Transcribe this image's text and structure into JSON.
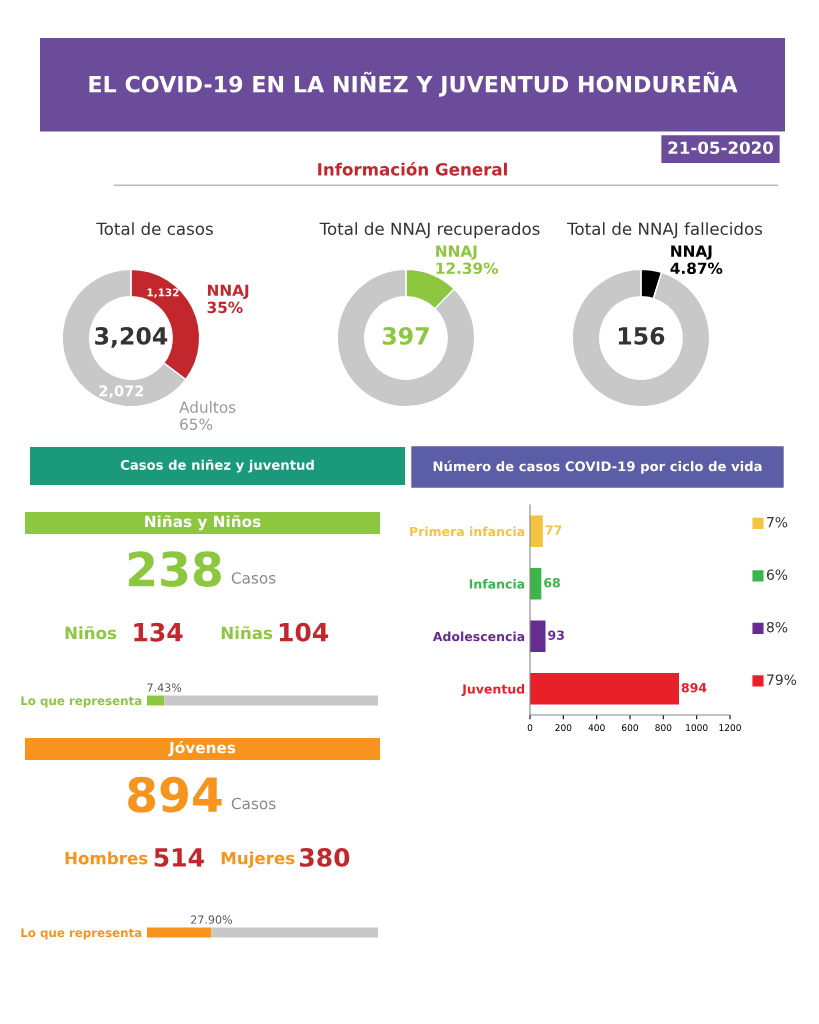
{
  "chart_data": [
    {
      "type": "other",
      "title": "EL COVID-19 EN LA NIÑEZ Y JUVENTUD HONDUREÑA",
      "annotations": [
        "21-05-2020",
        "Información General"
      ],
      "colors": [
        "#6b4c9a",
        "#c1272d"
      ]
    },
    {
      "type": "donut",
      "title": "Total de casos",
      "categories": [
        "NNAJ",
        "Adultos"
      ],
      "values": [
        1132,
        2072
      ],
      "colors": [
        "#c1272d",
        "#c8c8c8"
      ],
      "value_labels": [
        "1,132",
        "2,072"
      ],
      "annotations": [
        "3,204",
        "35%",
        "65%"
      ]
    },
    {
      "type": "donut",
      "title": "Total de NNAJ recuperados",
      "categories": [
        "NNAJ",
        null
      ],
      "values": [
        12.39,
        87.61
      ],
      "colors": [
        "#8dc63f",
        "#c8c8c8"
      ],
      "annotations": [
        "397",
        "12.39%",
        null
      ]
    },
    {
      "type": "donut",
      "title": "Total de NNAJ fallecidos",
      "categories": [
        "NNAJ",
        null
      ],
      "values": [
        4.87,
        95.13
      ],
      "colors": [
        "#000000",
        "#c8c8c8"
      ],
      "annotations": [
        "156",
        "4.87%",
        null
      ]
    },
    {
      "type": "other",
      "title": "Casos de niñez y juventud",
      "colors": [
        "#1a9a7a"
      ]
    },
    {
      "type": "other",
      "title": "Niñas y Niños",
      "annotations": [
        "238",
        "Casos",
        "Niños",
        "134",
        "Niñas",
        "104"
      ],
      "colors": [
        "#8dc63f",
        "#c1272d"
      ]
    },
    {
      "type": "bar",
      "orientation": "horizontal",
      "stacked": true,
      "categories": [
        "Lo que representa"
      ],
      "xlim": [
        0,
        100
      ],
      "tick_labels": "y",
      "colors": [
        "#8dc63f"
      ],
      "series": [
        {
          "color": "#8dc63f",
          "values": [
            7.43
          ],
          "value_labels": [
            "7.43%"
          ]
        },
        {
          "color": "#c8c8c8",
          "values": [
            92.57
          ]
        }
      ]
    },
    {
      "type": "other",
      "title": "Jóvenes",
      "annotations": [
        "894",
        "Casos",
        "Hombres",
        "514",
        "Mujeres",
        "380"
      ],
      "colors": [
        "#f7941d",
        "#c1272d"
      ]
    },
    {
      "type": "bar",
      "orientation": "horizontal",
      "stacked": true,
      "categories": [
        "Lo que representa"
      ],
      "xlim": [
        0,
        100
      ],
      "tick_labels": "y",
      "colors": [
        "#f7941d"
      ],
      "series": [
        {
          "color": "#f7941d",
          "values": [
            27.9
          ],
          "value_labels": [
            "27.90%"
          ]
        },
        {
          "color": "#c8c8c8",
          "values": [
            72.1
          ]
        }
      ]
    },
    {
      "type": "bar",
      "orientation": "horizontal",
      "title": "Número de casos COVID-19 por ciclo de vida",
      "categories": [
        "Primera infancia",
        "Infancia",
        "Adolescencia",
        "Juventud"
      ],
      "values": [
        77,
        68,
        93,
        894
      ],
      "colors": [
        "#f5c342",
        "#3cb54a",
        "#662d91",
        "#e8202a"
      ],
      "data_labels": true,
      "xlim": [
        0,
        1200
      ],
      "xticks": [
        0,
        200,
        400,
        600,
        800,
        1000,
        1200
      ],
      "annotations": [
        "7%",
        "6%",
        "8%",
        "79%"
      ]
    }
  ]
}
